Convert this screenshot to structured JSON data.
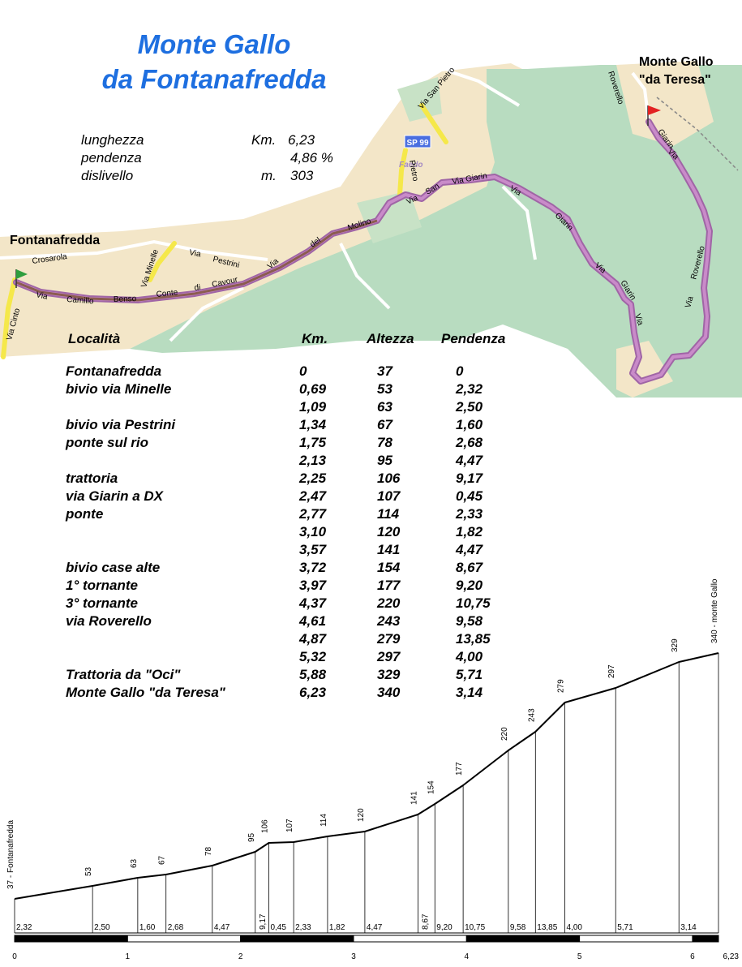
{
  "title": {
    "line1": "Monte Gallo",
    "line2": "da Fontanafredda"
  },
  "stats": [
    {
      "label": "lunghezza",
      "unit": "Km.",
      "value": "6,23"
    },
    {
      "label": "pendenza",
      "unit": "",
      "value": "4,86 %"
    },
    {
      "label": "dislivello",
      "unit": "m.",
      "value": "303"
    }
  ],
  "map": {
    "start_label": "Fontanafredda",
    "end_label_1": "Monte Gallo",
    "end_label_2": "\"da Teresa\"",
    "road_shield": "SP 99",
    "town_label": "Faedo",
    "street_labels": [
      "Crosarola",
      "Via Cinto",
      "Via",
      "Camillo",
      "Benso",
      "Conte",
      "di",
      "Cavour",
      "Via Minelle",
      "Via",
      "Pestrini",
      "Via",
      "del",
      "Molino",
      "Via San Pietro",
      "Pietro",
      "Via",
      "San",
      "Via Giarin",
      "Via",
      "Giarin",
      "Via",
      "Giarin",
      "Via",
      "Giarin",
      "Via",
      "Roverello",
      "Via",
      "Roverello",
      "Via Roverello",
      "Via",
      "Roverello"
    ],
    "colors": {
      "route": "#b36fb8",
      "route_inner": "#c083c0",
      "forest": "#b8dcc0",
      "urban": "#f3e6c8",
      "road_yellow": "#f5e84a",
      "start_flag": "#2e9e3e",
      "end_flag": "#e32222"
    }
  },
  "table": {
    "headers": {
      "place": "Località",
      "km": "Km.",
      "alt": "Altezza",
      "grad": "Pendenza"
    },
    "rows": [
      {
        "place": "Fontanafredda",
        "km": "0",
        "alt": "37",
        "grad": "0"
      },
      {
        "place": "bivio via Minelle",
        "km": "0,69",
        "alt": "53",
        "grad": "2,32"
      },
      {
        "place": "",
        "km": "1,09",
        "alt": "63",
        "grad": "2,50"
      },
      {
        "place": "bivio via Pestrini",
        "km": "1,34",
        "alt": "67",
        "grad": "1,60"
      },
      {
        "place": "ponte sul rio",
        "km": "1,75",
        "alt": "78",
        "grad": "2,68"
      },
      {
        "place": "",
        "km": "2,13",
        "alt": "95",
        "grad": "4,47"
      },
      {
        "place": "trattoria",
        "km": "2,25",
        "alt": "106",
        "grad": "9,17"
      },
      {
        "place": "via Giarin a DX",
        "km": "2,47",
        "alt": "107",
        "grad": "0,45"
      },
      {
        "place": "ponte",
        "km": "2,77",
        "alt": "114",
        "grad": "2,33"
      },
      {
        "place": "",
        "km": "3,10",
        "alt": "120",
        "grad": "1,82"
      },
      {
        "place": "",
        "km": "3,57",
        "alt": "141",
        "grad": "4,47"
      },
      {
        "place": "bivio case alte",
        "km": "3,72",
        "alt": "154",
        "grad": "8,67"
      },
      {
        "place": "1° tornante",
        "km": "3,97",
        "alt": "177",
        "grad": "9,20"
      },
      {
        "place": "3° tornante",
        "km": "4,37",
        "alt": "220",
        "grad": "10,75"
      },
      {
        "place": "via Roverello",
        "km": "4,61",
        "alt": "243",
        "grad": "9,58"
      },
      {
        "place": "",
        "km": "4,87",
        "alt": "279",
        "grad": "13,85"
      },
      {
        "place": "",
        "km": "5,32",
        "alt": "297",
        "grad": "4,00"
      },
      {
        "place": "Trattoria da \"Oci\"",
        "km": "5,88",
        "alt": "329",
        "grad": "5,71"
      },
      {
        "place": "Monte Gallo \"da Teresa\"",
        "km": "6,23",
        "alt": "340",
        "grad": "3,14"
      }
    ]
  },
  "chart_data": {
    "type": "area",
    "x": [
      0,
      0.69,
      1.09,
      1.34,
      1.75,
      2.13,
      2.25,
      2.47,
      2.77,
      3.1,
      3.57,
      3.72,
      3.97,
      4.37,
      4.61,
      4.87,
      5.32,
      5.88,
      6.23
    ],
    "y": [
      37,
      53,
      63,
      67,
      78,
      95,
      106,
      107,
      114,
      120,
      141,
      154,
      177,
      220,
      243,
      279,
      297,
      329,
      340
    ],
    "point_labels": [
      "37 - Fontanafredda",
      "53",
      "63",
      "67",
      "78",
      "95",
      "106",
      "107",
      "114",
      "120",
      "141",
      "154",
      "177",
      "220",
      "243",
      "279",
      "297",
      "329",
      "340 - monte Gallo"
    ],
    "gradient_labels": [
      "2,32",
      "2,50",
      "1,60",
      "2,68",
      "4,47",
      "9,17",
      "0,45",
      "2,33",
      "1,82",
      "4,47",
      "8,67",
      "9,20",
      "10,75",
      "9,58",
      "13,85",
      "4,00",
      "5,71",
      "3,14"
    ],
    "gradient_label_vertical": [
      false,
      false,
      false,
      false,
      false,
      true,
      false,
      false,
      false,
      false,
      true,
      false,
      false,
      false,
      false,
      false,
      false,
      false
    ],
    "x_ticks": [
      "0",
      "1",
      "2",
      "3",
      "4",
      "5",
      "6",
      "6,23"
    ],
    "xlim": [
      0,
      6.23
    ],
    "line_color": "#000000"
  }
}
